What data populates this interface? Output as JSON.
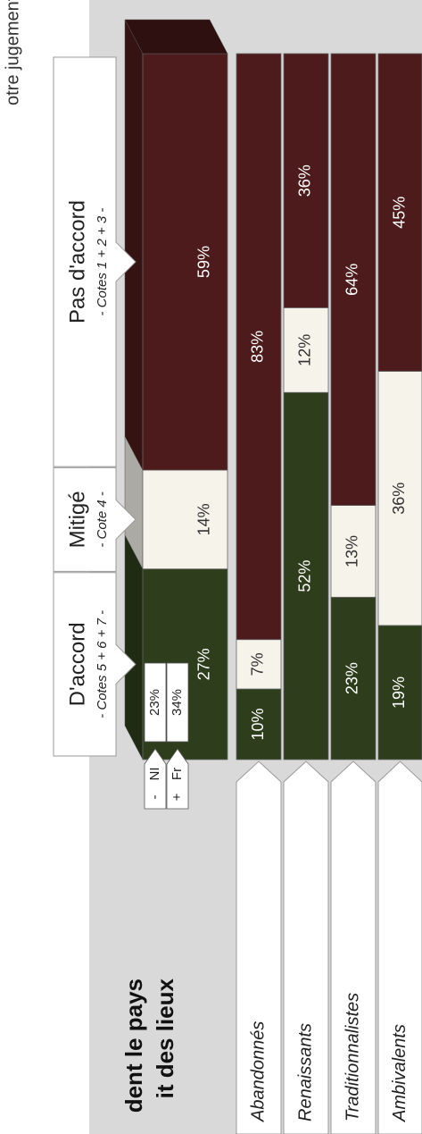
{
  "texts": {
    "top_note": "otre jugement.",
    "heading_1": "dent le pays",
    "heading_2": "it des lieux"
  },
  "chart_data": {
    "type": "bar",
    "stacked": true,
    "orientation": "horizontal",
    "categories": [
      null,
      "Abandonnés",
      "Renaissants",
      "Traditionnalistes",
      "Ambivalents"
    ],
    "xlim": [
      0,
      100
    ],
    "series": [
      {
        "name": "D'accord",
        "note": "- Cotes 5 + 6 + 7 -",
        "color": "#2e3d1c",
        "values": [
          27,
          10,
          52,
          23,
          19
        ],
        "value_labels": [
          "27%",
          "10%",
          "52%",
          "23%",
          "19%"
        ]
      },
      {
        "name": "Mitigé",
        "note": "- Cote 4 -",
        "color": "#f6f3ea",
        "values": [
          14,
          7,
          12,
          13,
          36
        ],
        "value_labels": [
          "14%",
          "7%",
          "12%",
          "13%",
          "36%"
        ]
      },
      {
        "name": "Pas d'accord",
        "note": "- Cotes 1 + 2 + 3 -",
        "color": "#4d1b1b",
        "values": [
          59,
          83,
          36,
          64,
          45
        ],
        "value_labels": [
          "59%",
          "83%",
          "36%",
          "64%",
          "45%"
        ]
      }
    ],
    "subgroups": [
      {
        "sign": "-",
        "name": "NI",
        "value": 23,
        "value_label": "23%"
      },
      {
        "sign": "+",
        "name": "Fr",
        "value": 34,
        "value_label": "34%"
      }
    ]
  }
}
